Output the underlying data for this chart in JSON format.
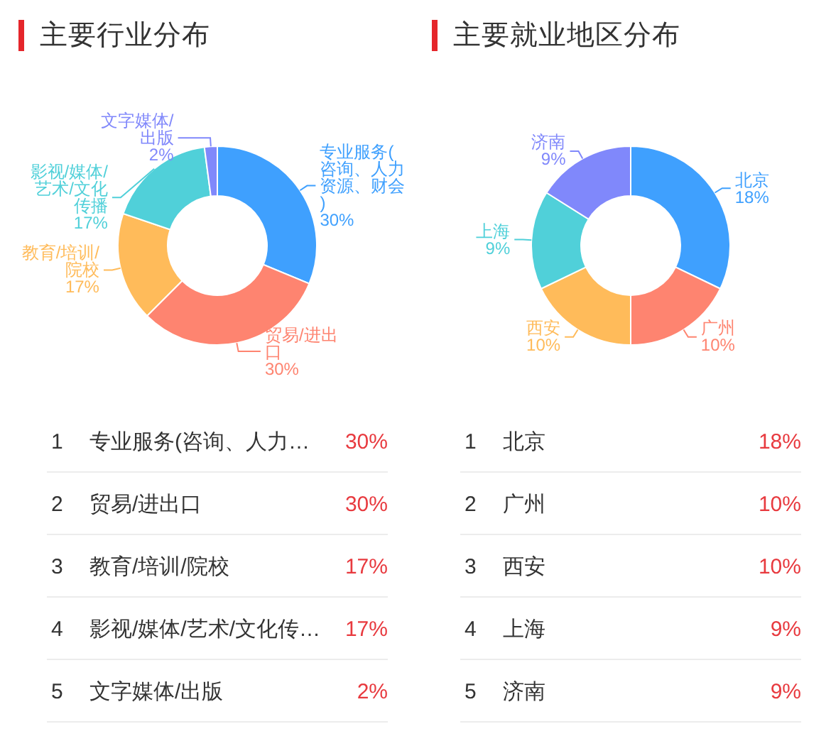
{
  "chart_data": [
    {
      "type": "donut",
      "title": "主要行业分布",
      "categories": [
        "专业服务(咨询、人力资源、财会)",
        "贸易/进出口",
        "教育/培训/院校",
        "影视/媒体/艺术/文化传播",
        "文字媒体/出版"
      ],
      "values": [
        30,
        30,
        17,
        17,
        2
      ],
      "value_labels": [
        "30%",
        "30%",
        "17%",
        "17%",
        "2%"
      ],
      "colors": [
        "#3fa0fe",
        "#fe8470",
        "#ffbb5a",
        "#50d0d9",
        "#8088fb"
      ],
      "annotations": [
        "1 专业服务(咨询、人力…",
        "2 贸易/进出口",
        "3 教育/培训/院校",
        "4 影视/媒体/艺术/文化传…",
        "5 文字媒体/出版"
      ]
    },
    {
      "type": "donut",
      "title": "主要就业地区分布",
      "categories": [
        "北京",
        "广州",
        "西安",
        "上海",
        "济南"
      ],
      "values": [
        18,
        10,
        10,
        9,
        9
      ],
      "value_labels": [
        "18%",
        "10%",
        "10%",
        "9%",
        "9%"
      ],
      "colors": [
        "#3fa0fe",
        "#fe8470",
        "#ffbb5a",
        "#50d0d9",
        "#8088fb"
      ],
      "annotations": [
        "1 北京",
        "2 广州",
        "3 西安",
        "4 上海",
        "5 济南"
      ]
    }
  ]
}
